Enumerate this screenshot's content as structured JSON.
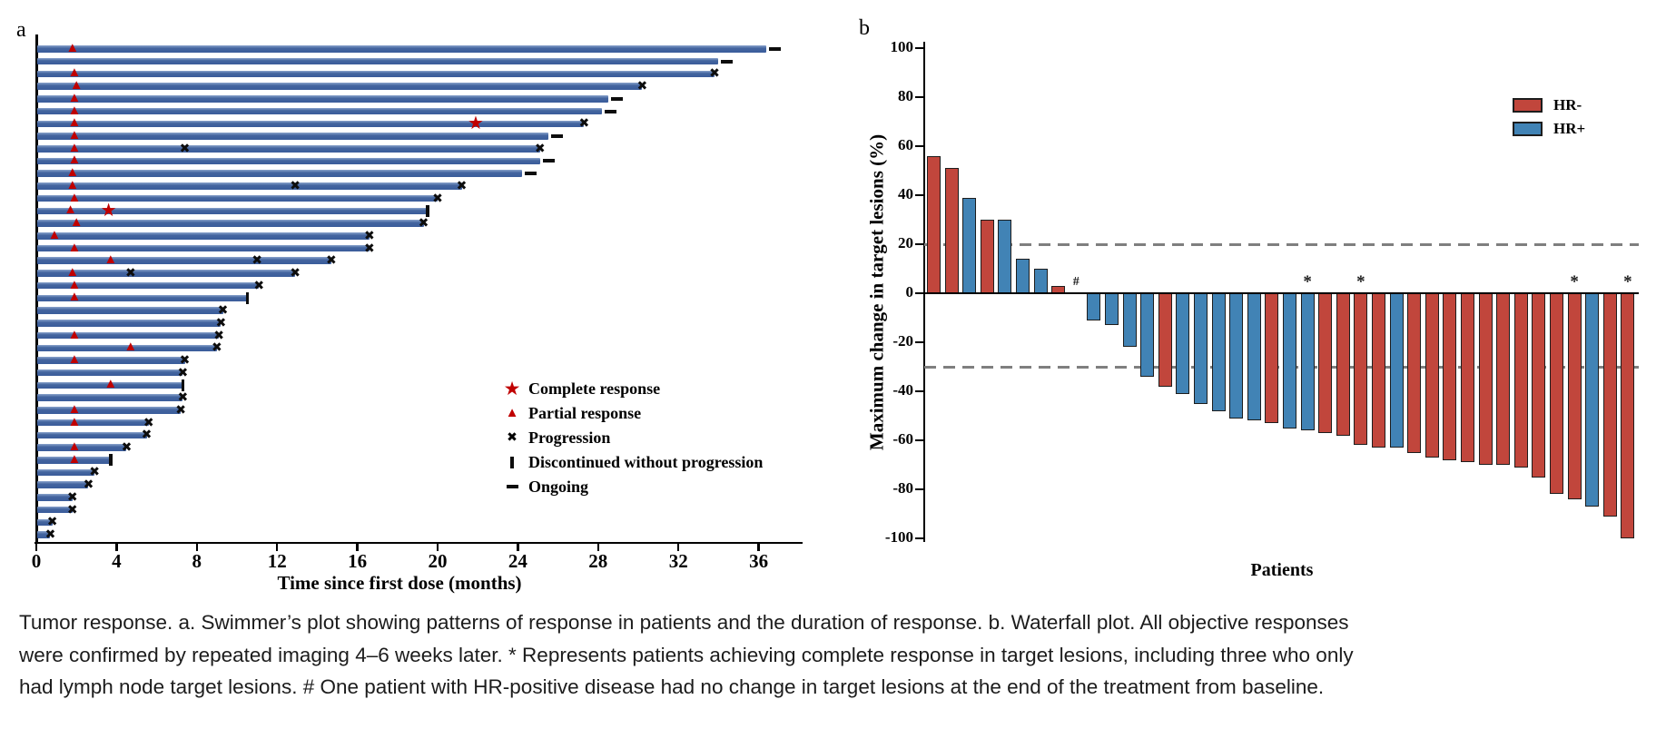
{
  "figure": {
    "panel_a_label": "a",
    "panel_b_label": "b",
    "caption": "Tumor response. a. Swimmer’s plot showing patterns of response in patients and the duration of response. b. Waterfall plot. All objective responses were confirmed by repeated imaging 4–6 weeks later. * Represents patients achieving complete response in target lesions, including three who only had lymph node target lesions. # One patient with HR-positive disease had no change in target lesions at the end of the treatment from baseline."
  },
  "chart_data": [
    {
      "type": "swimmer",
      "xlabel": "Time since first dose (months)",
      "xlim": [
        0,
        38
      ],
      "xticks": [
        0,
        4,
        8,
        12,
        16,
        20,
        24,
        28,
        32,
        36
      ],
      "bar_color": "#3E5F9E",
      "marker_color": "#C00000",
      "legend": [
        {
          "marker": "star",
          "label": "Complete response"
        },
        {
          "marker": "triangle",
          "label": "Partial response"
        },
        {
          "marker": "x",
          "label": "Progression"
        },
        {
          "marker": "vbar",
          "label": "Discontinued without progression"
        },
        {
          "marker": "dash",
          "label": "Ongoing"
        }
      ],
      "patients": [
        {
          "duration": 36.4,
          "end": "ongoing",
          "pr": 1.8
        },
        {
          "duration": 34.0,
          "end": "ongoing"
        },
        {
          "duration": 33.8,
          "end": "progression",
          "pr": 1.9
        },
        {
          "duration": 30.2,
          "end": "progression",
          "pr": 2.0
        },
        {
          "duration": 28.5,
          "end": "ongoing",
          "pr": 1.9
        },
        {
          "duration": 28.2,
          "end": "ongoing",
          "pr": 1.9
        },
        {
          "duration": 27.3,
          "end": "progression",
          "pr": 1.9,
          "cr": 21.9
        },
        {
          "duration": 25.5,
          "end": "ongoing",
          "pr": 1.9
        },
        {
          "duration": 25.1,
          "end": "progression",
          "pr": 1.9,
          "xmarks": [
            7.4
          ]
        },
        {
          "duration": 25.1,
          "end": "ongoing",
          "pr": 1.9
        },
        {
          "duration": 24.2,
          "end": "ongoing",
          "pr": 1.8
        },
        {
          "duration": 21.2,
          "end": "progression",
          "pr": 1.8,
          "xmarks": [
            12.9
          ]
        },
        {
          "duration": 20.0,
          "end": "progression",
          "pr": 1.9
        },
        {
          "duration": 19.5,
          "end": "discontinued",
          "pr": 1.7,
          "cr": 3.6
        },
        {
          "duration": 19.3,
          "end": "progression",
          "pr": 2.0
        },
        {
          "duration": 16.6,
          "end": "progression",
          "pr": 0.9
        },
        {
          "duration": 16.6,
          "end": "progression",
          "pr": 1.9
        },
        {
          "duration": 14.7,
          "end": "progression",
          "pr": 3.7,
          "xmarks": [
            11.0
          ]
        },
        {
          "duration": 12.9,
          "end": "progression",
          "pr": 1.8,
          "xmarks": [
            4.7
          ]
        },
        {
          "duration": 11.1,
          "end": "progression",
          "pr": 1.9
        },
        {
          "duration": 10.5,
          "end": "discontinued",
          "pr": 1.9
        },
        {
          "duration": 9.3,
          "end": "progression"
        },
        {
          "duration": 9.2,
          "end": "progression"
        },
        {
          "duration": 9.1,
          "end": "progression",
          "pr": 1.9
        },
        {
          "duration": 9.0,
          "end": "progression",
          "pr": 4.7
        },
        {
          "duration": 7.4,
          "end": "progression",
          "pr": 1.9
        },
        {
          "duration": 7.3,
          "end": "progression"
        },
        {
          "duration": 7.3,
          "end": "discontinued",
          "pr": 3.7
        },
        {
          "duration": 7.3,
          "end": "progression"
        },
        {
          "duration": 7.2,
          "end": "progression",
          "pr": 1.9
        },
        {
          "duration": 5.6,
          "end": "progression",
          "pr": 1.9
        },
        {
          "duration": 5.5,
          "end": "progression"
        },
        {
          "duration": 4.5,
          "end": "progression",
          "pr": 1.9
        },
        {
          "duration": 3.7,
          "end": "discontinued",
          "pr": 1.9
        },
        {
          "duration": 2.9,
          "end": "progression"
        },
        {
          "duration": 2.6,
          "end": "progression"
        },
        {
          "duration": 1.8,
          "end": "progression"
        },
        {
          "duration": 1.8,
          "end": "progression"
        },
        {
          "duration": 0.8,
          "end": "progression"
        },
        {
          "duration": 0.7,
          "end": "progression"
        }
      ]
    },
    {
      "type": "waterfall",
      "ylabel": "Maximum change in target lesions (%)",
      "xlabel": "Patients",
      "ylim": [
        -100,
        100
      ],
      "yticks": [
        100,
        80,
        60,
        40,
        20,
        0,
        -20,
        -40,
        -60,
        -80,
        -100
      ],
      "reference_lines": [
        20,
        -30
      ],
      "group_colors": {
        "HR-": "#C1463C",
        "HR+": "#4183B5"
      },
      "legend": [
        {
          "label": "HR-",
          "group": "HR-"
        },
        {
          "label": "HR+",
          "group": "HR+"
        }
      ],
      "bars": [
        {
          "value": 56,
          "group": "HR-"
        },
        {
          "value": 51,
          "group": "HR-"
        },
        {
          "value": 39,
          "group": "HR+"
        },
        {
          "value": 30,
          "group": "HR-"
        },
        {
          "value": 30,
          "group": "HR+"
        },
        {
          "value": 14,
          "group": "HR+"
        },
        {
          "value": 10,
          "group": "HR+"
        },
        {
          "value": 3,
          "group": "HR-"
        },
        {
          "value": 0,
          "group": "HR+",
          "annotation": "#"
        },
        {
          "value": -11,
          "group": "HR+"
        },
        {
          "value": -13,
          "group": "HR+"
        },
        {
          "value": -22,
          "group": "HR+"
        },
        {
          "value": -34,
          "group": "HR+"
        },
        {
          "value": -38,
          "group": "HR-"
        },
        {
          "value": -41,
          "group": "HR+"
        },
        {
          "value": -45,
          "group": "HR+"
        },
        {
          "value": -48,
          "group": "HR+"
        },
        {
          "value": -51,
          "group": "HR+"
        },
        {
          "value": -52,
          "group": "HR+"
        },
        {
          "value": -53,
          "group": "HR-"
        },
        {
          "value": -55,
          "group": "HR+"
        },
        {
          "value": -56,
          "group": "HR+",
          "annotation": "*"
        },
        {
          "value": -57,
          "group": "HR-"
        },
        {
          "value": -58,
          "group": "HR-"
        },
        {
          "value": -62,
          "group": "HR-",
          "annotation": "*"
        },
        {
          "value": -63,
          "group": "HR-"
        },
        {
          "value": -63,
          "group": "HR+"
        },
        {
          "value": -65,
          "group": "HR-"
        },
        {
          "value": -67,
          "group": "HR-"
        },
        {
          "value": -68,
          "group": "HR-"
        },
        {
          "value": -69,
          "group": "HR-"
        },
        {
          "value": -70,
          "group": "HR-"
        },
        {
          "value": -70,
          "group": "HR-"
        },
        {
          "value": -71,
          "group": "HR-"
        },
        {
          "value": -75,
          "group": "HR-"
        },
        {
          "value": -82,
          "group": "HR-"
        },
        {
          "value": -84,
          "group": "HR-",
          "annotation": "*"
        },
        {
          "value": -87,
          "group": "HR+"
        },
        {
          "value": -91,
          "group": "HR-"
        },
        {
          "value": -100,
          "group": "HR-",
          "annotation": "*"
        }
      ]
    }
  ]
}
